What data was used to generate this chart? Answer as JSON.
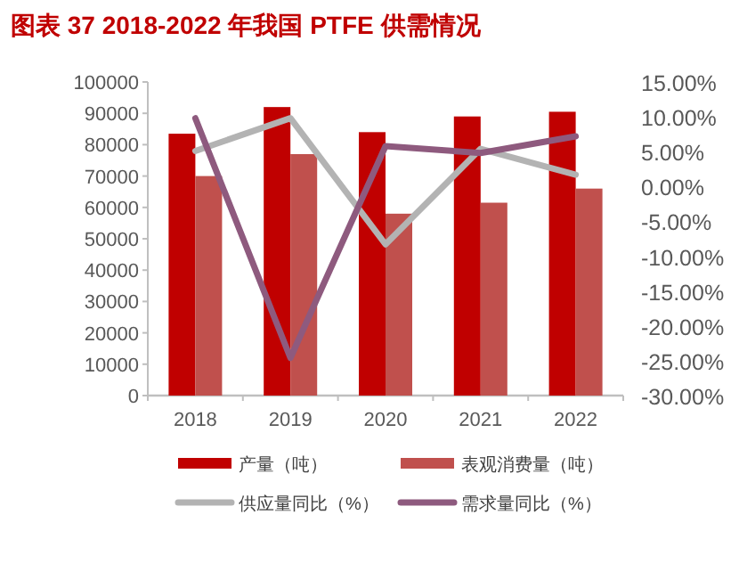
{
  "chart_data": {
    "type": "bar",
    "title": "图表 37 2018-2022 年我国 PTFE 供需情况",
    "categories": [
      "2018",
      "2019",
      "2020",
      "2021",
      "2022"
    ],
    "series": [
      {
        "name": "产量（吨）",
        "color": "#c00000",
        "values": [
          83500,
          92000,
          84000,
          89000,
          90500
        ]
      },
      {
        "name": "表观消费量（吨）",
        "color": "#c0504d",
        "values": [
          70000,
          77000,
          58000,
          61500,
          66000
        ]
      },
      {
        "name": "供应量同比（%）",
        "type": "line",
        "axis": "y2",
        "color": "#b3b3b3",
        "values": [
          5.1,
          9.8,
          -8.3,
          5.4,
          1.7
        ]
      },
      {
        "name": "需求量同比（%）",
        "type": "line",
        "axis": "y2",
        "color": "#8e5a7e",
        "values": [
          9.8,
          -24.6,
          5.8,
          4.8,
          7.2
        ]
      }
    ],
    "ylim": [
      0,
      100000
    ],
    "yticks": [
      0,
      10000,
      20000,
      30000,
      40000,
      50000,
      60000,
      70000,
      80000,
      90000,
      100000
    ],
    "y2lim": [
      -30,
      15
    ],
    "y2ticks": [
      {
        "value": -30,
        "label": "-30.00%"
      },
      {
        "value": -25,
        "label": "-25.00%"
      },
      {
        "value": -20,
        "label": "-20.00%"
      },
      {
        "value": -15,
        "label": "-15.00%"
      },
      {
        "value": -10,
        "label": "-10.00%"
      },
      {
        "value": -5,
        "label": "-5.00%"
      },
      {
        "value": 0,
        "label": "0.00%"
      },
      {
        "value": 5,
        "label": "5.00%"
      },
      {
        "value": 10,
        "label": "10.00%"
      },
      {
        "value": 15,
        "label": "15.00%"
      }
    ],
    "grid": false,
    "legend": "bottom"
  }
}
